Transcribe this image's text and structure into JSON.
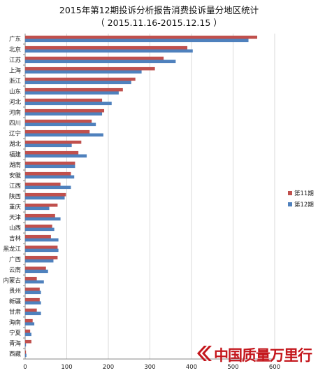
{
  "chart_data": {
    "type": "bar",
    "orientation": "horizontal",
    "title": "2015年第12期投诉分析报告消费投诉量分地区统计",
    "subtitle": "（ 2015.11.16-2015.12.15 ）",
    "xlabel": "",
    "ylabel": "",
    "xlim": [
      0,
      600
    ],
    "xticks": [
      "0",
      "100",
      "200",
      "300",
      "400",
      "500",
      "600"
    ],
    "grid": "vertical",
    "legend_position": "right",
    "categories": [
      "广东",
      "北京",
      "江苏",
      "上海",
      "浙江",
      "山东",
      "河北",
      "河南",
      "四川",
      "辽宁",
      "湖北",
      "福建",
      "湖南",
      "安徽",
      "江西",
      "陕西",
      "重庆",
      "天津",
      "山西",
      "吉林",
      "黑龙江",
      "广西",
      "云南",
      "内蒙古",
      "贵州",
      "新疆",
      "甘肃",
      "海南",
      "宁夏",
      "青海",
      "西藏"
    ],
    "series": [
      {
        "name": "第11期",
        "color": "#c0504d",
        "values": [
          558,
          390,
          333,
          312,
          265,
          235,
          185,
          190,
          160,
          155,
          135,
          128,
          120,
          110,
          85,
          98,
          78,
          72,
          65,
          62,
          78,
          78,
          50,
          28,
          35,
          35,
          28,
          18,
          12,
          15,
          2
        ]
      },
      {
        "name": "第12期",
        "color": "#4f81bd",
        "values": [
          537,
          403,
          362,
          280,
          255,
          225,
          208,
          185,
          170,
          188,
          112,
          148,
          120,
          118,
          110,
          95,
          58,
          85,
          70,
          80,
          80,
          68,
          55,
          45,
          38,
          38,
          38,
          22,
          15,
          2,
          3
        ]
      }
    ]
  },
  "watermark": {
    "text": "中国质量万里行",
    "logo_icon": "quality-logo-icon"
  }
}
